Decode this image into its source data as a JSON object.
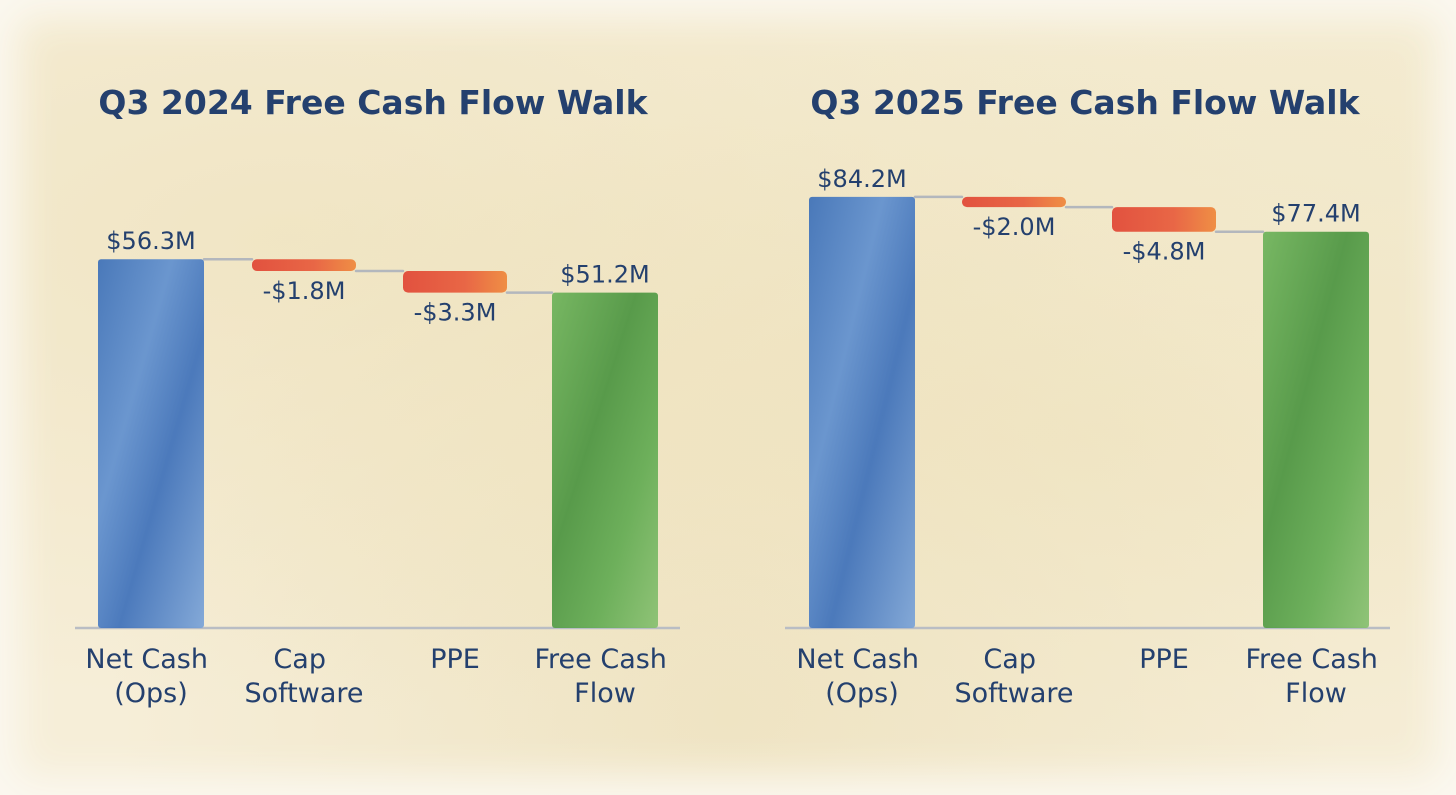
{
  "chart_data": [
    {
      "type": "waterfall",
      "title": "Q3 2024 Free Cash Flow Walk",
      "categories": [
        [
          "Net Cash",
          "(Ops)"
        ],
        [
          "Cap",
          "Software"
        ],
        [
          "PPE"
        ],
        [
          "Free Cash",
          "Flow"
        ]
      ],
      "values": [
        56.3,
        -1.8,
        -3.3,
        51.2
      ],
      "kinds": [
        "total",
        "decrease",
        "decrease",
        "total"
      ],
      "value_labels": [
        "$56.3M",
        "-$1.8M",
        "-$3.3M",
        "$51.2M"
      ],
      "unit": "$M"
    },
    {
      "type": "waterfall",
      "title": "Q3 2025 Free Cash Flow Walk",
      "categories": [
        [
          "Net Cash",
          "(Ops)"
        ],
        [
          "Cap",
          "Software"
        ],
        [
          "PPE"
        ],
        [
          "Free Cash",
          "Flow"
        ]
      ],
      "values": [
        84.2,
        -2.0,
        -4.8,
        77.4
      ],
      "kinds": [
        "total",
        "decrease",
        "decrease",
        "total"
      ],
      "value_labels": [
        "$84.2M",
        "-$2.0M",
        "-$4.8M",
        "$77.4M"
      ],
      "unit": "$M"
    }
  ],
  "colors": {
    "start": "#3f74bd",
    "decrease": "#e3503a",
    "end": "#58a247",
    "text": "#24406e",
    "axis": "#b9bdc4",
    "connector": "#b3b7bd"
  }
}
